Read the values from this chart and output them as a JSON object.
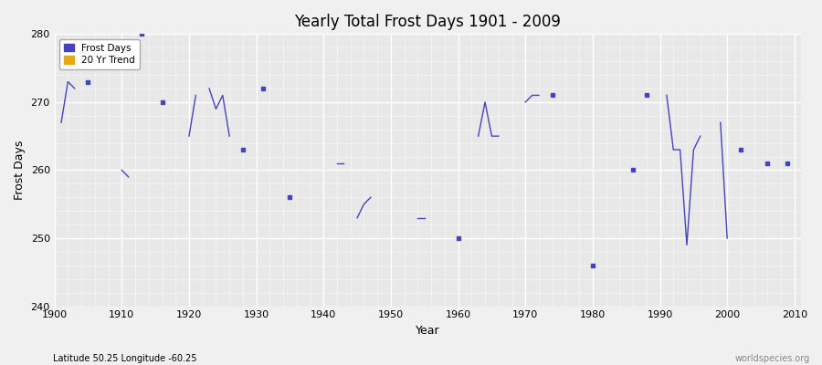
{
  "title": "Yearly Total Frost Days 1901 - 2009",
  "xlabel": "Year",
  "ylabel": "Frost Days",
  "subtitle": "Latitude 50.25 Longitude -60.25",
  "watermark": "worldspecies.org",
  "line_color": "#4444bb",
  "trend_color": "#e6a817",
  "fig_bg": "#f0f0f0",
  "plot_bg": "#e8e8e8",
  "legend_frost": "Frost Days",
  "legend_trend": "20 Yr Trend",
  "ylim": [
    240,
    280
  ],
  "yticks": [
    240,
    250,
    260,
    270,
    280
  ],
  "xlim": [
    1900,
    2011
  ],
  "years": [
    1901,
    1902,
    1903,
    1904,
    1905,
    1906,
    1907,
    1908,
    1909,
    1910,
    1911,
    1912,
    1913,
    1914,
    1915,
    1916,
    1917,
    1918,
    1919,
    1920,
    1921,
    1922,
    1923,
    1924,
    1925,
    1926,
    1927,
    1928,
    1929,
    1930,
    1931,
    1932,
    1933,
    1934,
    1935,
    1936,
    1937,
    1938,
    1939,
    1940,
    1941,
    1942,
    1943,
    1944,
    1945,
    1946,
    1947,
    1948,
    1949,
    1950,
    1951,
    1952,
    1953,
    1954,
    1955,
    1956,
    1957,
    1958,
    1959,
    1960,
    1961,
    1962,
    1963,
    1964,
    1965,
    1966,
    1967,
    1968,
    1969,
    1970,
    1971,
    1972,
    1973,
    1974,
    1975,
    1976,
    1977,
    1978,
    1979,
    1980,
    1981,
    1982,
    1983,
    1984,
    1985,
    1986,
    1987,
    1988,
    1989,
    1990,
    1991,
    1992,
    1993,
    1994,
    1995,
    1996,
    1997,
    1998,
    1999,
    2000,
    2001,
    2002,
    2003,
    2004,
    2005,
    2006,
    2007,
    2008,
    2009
  ],
  "values": [
    267,
    273,
    272,
    null,
    273,
    null,
    null,
    null,
    null,
    260,
    259,
    null,
    280,
    null,
    null,
    270,
    null,
    null,
    null,
    265,
    271,
    null,
    272,
    269,
    271,
    265,
    null,
    263,
    null,
    null,
    272,
    null,
    null,
    null,
    256,
    null,
    null,
    null,
    null,
    null,
    null,
    261,
    261,
    null,
    253,
    255,
    256,
    null,
    null,
    null,
    null,
    null,
    null,
    253,
    253,
    null,
    null,
    null,
    null,
    250,
    null,
    null,
    265,
    270,
    265,
    265,
    null,
    null,
    null,
    270,
    271,
    271,
    null,
    271,
    null,
    null,
    null,
    null,
    null,
    246,
    null,
    null,
    null,
    null,
    null,
    260,
    null,
    271,
    null,
    null,
    271,
    263,
    263,
    249,
    263,
    265,
    null,
    null,
    267,
    250,
    null,
    263,
    null,
    null,
    null,
    261,
    null,
    null,
    261
  ]
}
